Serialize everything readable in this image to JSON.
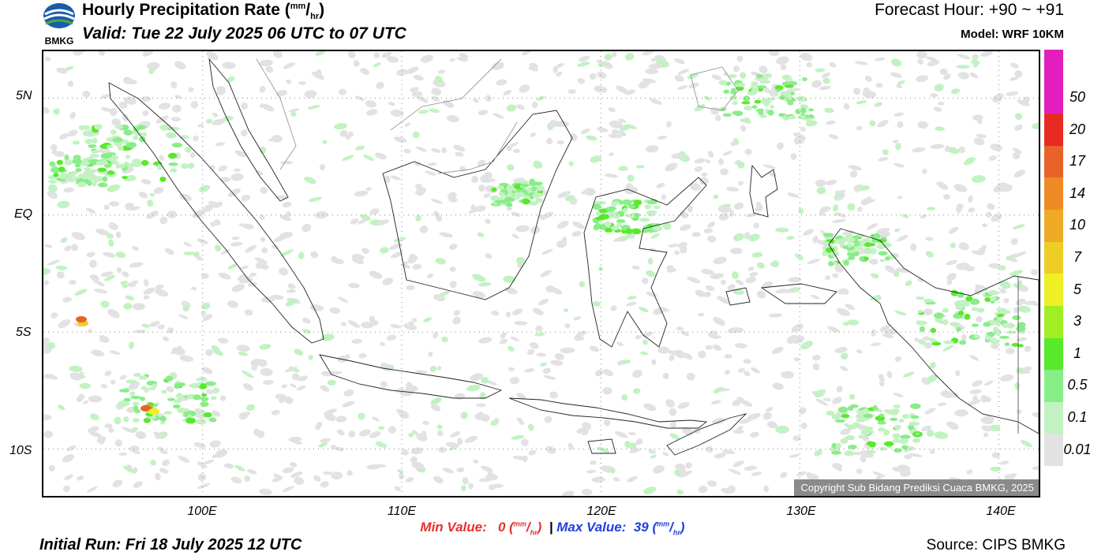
{
  "header": {
    "logo_text": "BMKG",
    "title_main": "Hourly Precipitation Rate (",
    "title_unit_top": "mm",
    "title_sep": "/",
    "title_unit_bottom": "hr",
    "title_close": ")",
    "valid_text": "Valid: Tue 22 July 2025 06 UTC to 07 UTC",
    "forecast_hour": "Forecast Hour: +90 ~ +91",
    "model": "Model: WRF 10KM"
  },
  "map": {
    "lat_labels": [
      "5N",
      "EQ",
      "5S",
      "10S"
    ],
    "lat_values": [
      5,
      0,
      -5,
      -10
    ],
    "lon_labels": [
      "100E",
      "110E",
      "120E",
      "130E",
      "140E"
    ],
    "lon_values": [
      100,
      110,
      120,
      130,
      140
    ],
    "extent": {
      "lon_min": 92,
      "lon_max": 142,
      "lat_min": -12,
      "lat_max": 7
    },
    "copyright": "Copyright Sub Bidang Prediksi Cuaca BMKG, 2025"
  },
  "legend": {
    "levels": [
      {
        "label": "50",
        "color": "#e21fbe"
      },
      {
        "label": "20",
        "color": "#e82a23"
      },
      {
        "label": "17",
        "color": "#e8622a"
      },
      {
        "label": "14",
        "color": "#ee8a24"
      },
      {
        "label": "10",
        "color": "#eeaa24"
      },
      {
        "label": "7",
        "color": "#eece24"
      },
      {
        "label": "5",
        "color": "#eef024"
      },
      {
        "label": "3",
        "color": "#a2ee24"
      },
      {
        "label": "1",
        "color": "#58ea2a"
      },
      {
        "label": "0.5",
        "color": "#88ee88"
      },
      {
        "label": "0.1",
        "color": "#c2f2c2"
      },
      {
        "label": "0.01",
        "color": "#e2e2e2"
      }
    ],
    "top_color": "#e21fbe"
  },
  "footer": {
    "min_label": "Min Value:",
    "min_value": "0",
    "max_label": "Max Value:",
    "max_value": "39",
    "unit_top": "mm",
    "unit_bottom": "hr",
    "separator": "|",
    "initial_run": "Initial Run: Fri 18 July 2025 12 UTC",
    "source": "Source: CIPS BMKG"
  }
}
